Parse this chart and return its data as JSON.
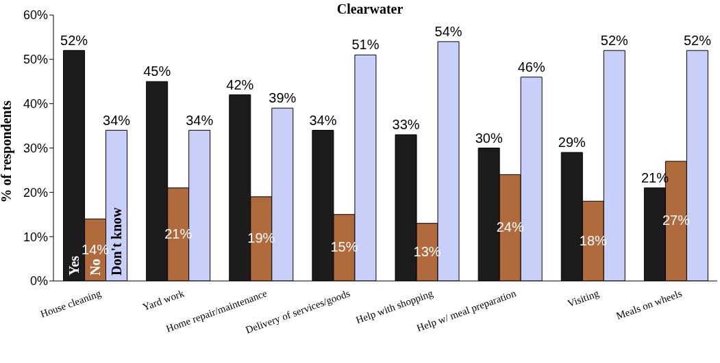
{
  "chart_data": {
    "type": "bar",
    "title": "Clearwater",
    "ylabel": "% of respondents",
    "categories": [
      "House cleaning",
      "Yard work",
      "Home repair/maintenance",
      "Delivery of services/goods",
      "Help with shopping",
      "Help w/ meal preparation",
      "Visiting",
      "Meals on wheels"
    ],
    "series": [
      {
        "name": "Yes",
        "color": "#1c1c1c",
        "values": [
          52,
          45,
          42,
          34,
          33,
          30,
          29,
          21
        ],
        "value_labels": [
          "52%",
          "45%",
          "42%",
          "34%",
          "33%",
          "30%",
          "29%",
          "21%"
        ]
      },
      {
        "name": "No",
        "color": "#b06a3c",
        "values": [
          14,
          21,
          19,
          15,
          13,
          24,
          18,
          27
        ],
        "value_labels": [
          "14%",
          "21%",
          "19%",
          "15%",
          "13%",
          "24%",
          "18%",
          "27%"
        ]
      },
      {
        "name": "Don't know",
        "color": "#c8d0fa",
        "values": [
          34,
          34,
          39,
          51,
          54,
          46,
          52,
          52
        ],
        "value_labels": [
          "34%",
          "34%",
          "39%",
          "51%",
          "54%",
          "46%",
          "52%",
          "52%"
        ]
      }
    ],
    "ylim": [
      0,
      60
    ],
    "yticks": [
      {
        "value": 0,
        "label": "0%"
      },
      {
        "value": 10,
        "label": "10%"
      },
      {
        "value": 20,
        "label": "20%"
      },
      {
        "value": 30,
        "label": "30%"
      },
      {
        "value": 40,
        "label": "40%"
      },
      {
        "value": 50,
        "label": "50%"
      },
      {
        "value": 60,
        "label": "60%"
      }
    ],
    "grid": false,
    "legend": false
  }
}
